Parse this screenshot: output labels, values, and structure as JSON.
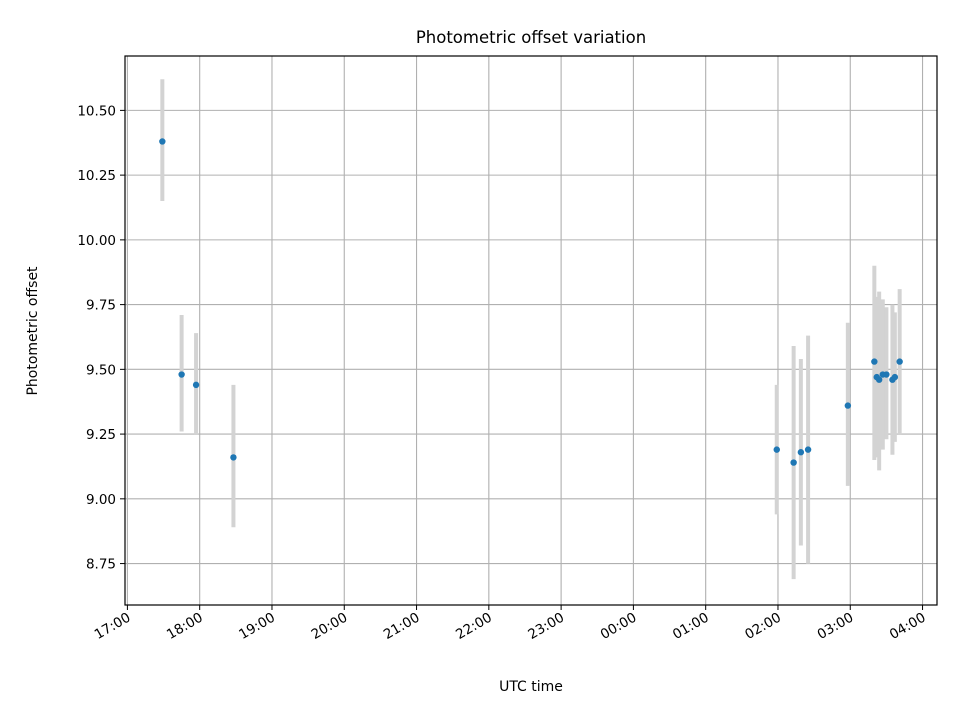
{
  "chart_data": {
    "type": "scatter",
    "title": "Photometric offset variation",
    "xlabel": "UTC time",
    "ylabel": "Photometric offset",
    "grid": true,
    "x_axis": {
      "kind": "time",
      "ticks": [
        "17:00",
        "18:00",
        "19:00",
        "20:00",
        "21:00",
        "22:00",
        "23:00",
        "00:00",
        "01:00",
        "02:00",
        "03:00",
        "04:00"
      ],
      "xlim": [
        "16:58",
        "04:12"
      ]
    },
    "y_axis": {
      "ticks": [
        "8.75",
        "9.00",
        "9.25",
        "9.50",
        "9.75",
        "10.00",
        "10.25",
        "10.50"
      ],
      "ylim": [
        8.59,
        10.71
      ]
    },
    "colors": {
      "points": "#1f77b4",
      "error_bars": "#d3d3d3",
      "grid": "#b0b0b0"
    },
    "series": [
      {
        "x": [
          "17:29",
          "17:45",
          "17:57",
          "18:28",
          "01:59",
          "02:13",
          "02:19",
          "02:25",
          "02:58",
          "03:20",
          "03:22",
          "03:24",
          "03:27",
          "03:30",
          "03:35",
          "03:37",
          "03:41"
        ],
        "y": [
          10.38,
          9.48,
          9.44,
          9.16,
          9.19,
          9.14,
          9.18,
          9.19,
          9.36,
          9.53,
          9.47,
          9.46,
          9.48,
          9.48,
          9.46,
          9.47,
          9.53
        ],
        "yerr_low": [
          10.15,
          9.26,
          9.25,
          8.89,
          8.94,
          8.69,
          8.82,
          8.75,
          9.05,
          9.15,
          9.16,
          9.11,
          9.19,
          9.23,
          9.17,
          9.22,
          9.25
        ],
        "yerr_high": [
          10.62,
          9.71,
          9.64,
          9.44,
          9.44,
          9.59,
          9.54,
          9.63,
          9.68,
          9.9,
          9.78,
          9.8,
          9.77,
          9.74,
          9.75,
          9.72,
          9.81
        ]
      }
    ]
  }
}
